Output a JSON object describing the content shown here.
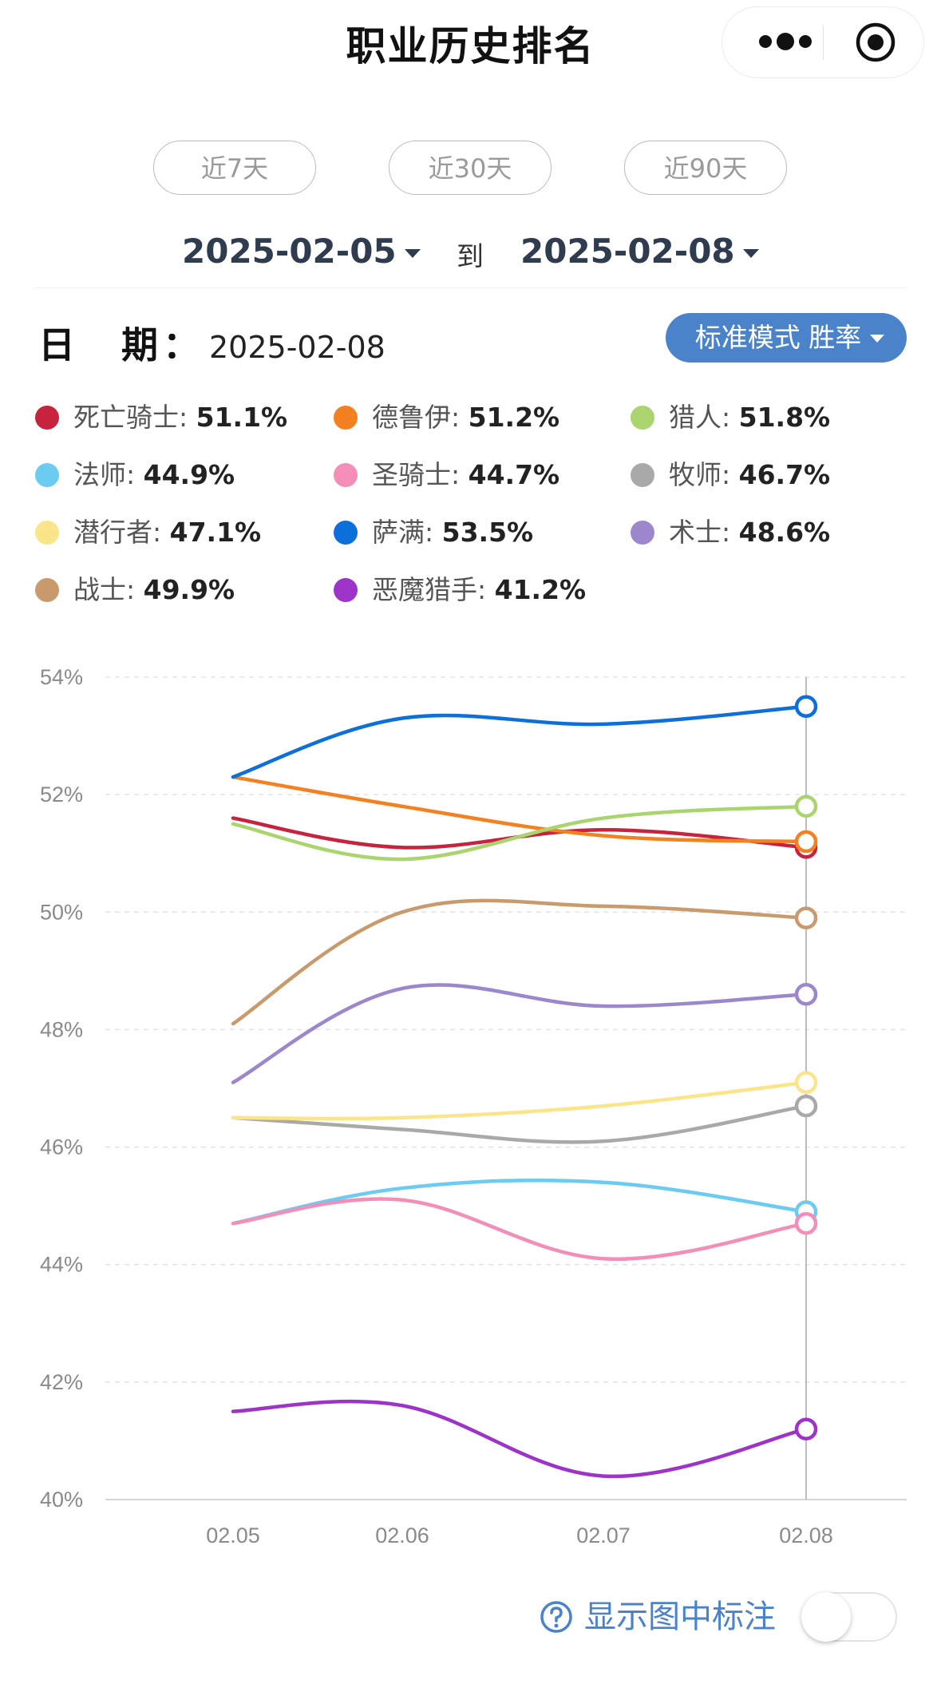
{
  "header": {
    "title": "职业历史排名",
    "more_icon": "more-dots-icon",
    "close_icon": "target-circle-icon"
  },
  "range_buttons": [
    {
      "label": "近7天"
    },
    {
      "label": "近30天"
    },
    {
      "label": "近90天"
    }
  ],
  "date_range": {
    "start": "2025-02-05",
    "to_label": "到",
    "end": "2025-02-08"
  },
  "date_row": {
    "label": "日　期：",
    "value": "2025-02-08"
  },
  "mode_selector": {
    "label": "标准模式 胜率"
  },
  "legend": [
    {
      "name": "死亡骑士",
      "value": "51.1%",
      "color": "#c8233e"
    },
    {
      "name": "德鲁伊",
      "value": "51.2%",
      "color": "#f4801f"
    },
    {
      "name": "猎人",
      "value": "51.8%",
      "color": "#a9d46e"
    },
    {
      "name": "法师",
      "value": "44.9%",
      "color": "#6ccbf0"
    },
    {
      "name": "圣骑士",
      "value": "44.7%",
      "color": "#f38eb8"
    },
    {
      "name": "牧师",
      "value": "46.7%",
      "color": "#a9a9a9"
    },
    {
      "name": "潜行者",
      "value": "47.1%",
      "color": "#fbe58a"
    },
    {
      "name": "萨满",
      "value": "53.5%",
      "color": "#0d6fda"
    },
    {
      "name": "术士",
      "value": "48.6%",
      "color": "#9c86cc"
    },
    {
      "name": "战士",
      "value": "49.9%",
      "color": "#c99a6b"
    },
    {
      "name": "恶魔猎手",
      "value": "41.2%",
      "color": "#9d33c8"
    }
  ],
  "chart_data": {
    "type": "line",
    "x": [
      "02.05",
      "02.06",
      "02.07",
      "02.08"
    ],
    "y_ticks": [
      "54%",
      "52%",
      "50%",
      "48%",
      "46%",
      "44%",
      "42%",
      "40%"
    ],
    "ylim": [
      40,
      54
    ],
    "grid": true,
    "highlight_x": "02.08",
    "series": [
      {
        "name": "死亡骑士",
        "color": "#c8233e",
        "values": [
          51.6,
          51.1,
          51.4,
          51.1
        ]
      },
      {
        "name": "德鲁伊",
        "color": "#f4801f",
        "values": [
          52.3,
          51.8,
          51.3,
          51.2
        ]
      },
      {
        "name": "猎人",
        "color": "#a9d46e",
        "values": [
          51.5,
          50.9,
          51.6,
          51.8
        ]
      },
      {
        "name": "法师",
        "color": "#6ccbf0",
        "values": [
          44.7,
          45.3,
          45.4,
          44.9
        ]
      },
      {
        "name": "圣骑士",
        "color": "#f38eb8",
        "values": [
          44.7,
          45.1,
          44.1,
          44.7
        ]
      },
      {
        "name": "牧师",
        "color": "#a9a9a9",
        "values": [
          46.5,
          46.3,
          46.1,
          46.7
        ]
      },
      {
        "name": "潜行者",
        "color": "#fbe58a",
        "values": [
          46.5,
          46.5,
          46.7,
          47.1
        ]
      },
      {
        "name": "萨满",
        "color": "#0d6fda",
        "values": [
          52.3,
          53.3,
          53.2,
          53.5
        ]
      },
      {
        "name": "术士",
        "color": "#9c86cc",
        "values": [
          47.1,
          48.7,
          48.4,
          48.6
        ]
      },
      {
        "name": "战士",
        "color": "#c99a6b",
        "values": [
          48.1,
          50.0,
          50.1,
          49.9
        ]
      },
      {
        "name": "恶魔猎手",
        "color": "#9d33c8",
        "values": [
          41.5,
          41.6,
          40.4,
          41.2
        ]
      }
    ]
  },
  "annotation_toggle": {
    "label": "显示图中标注",
    "on": false,
    "icon": "question-circle-icon"
  }
}
